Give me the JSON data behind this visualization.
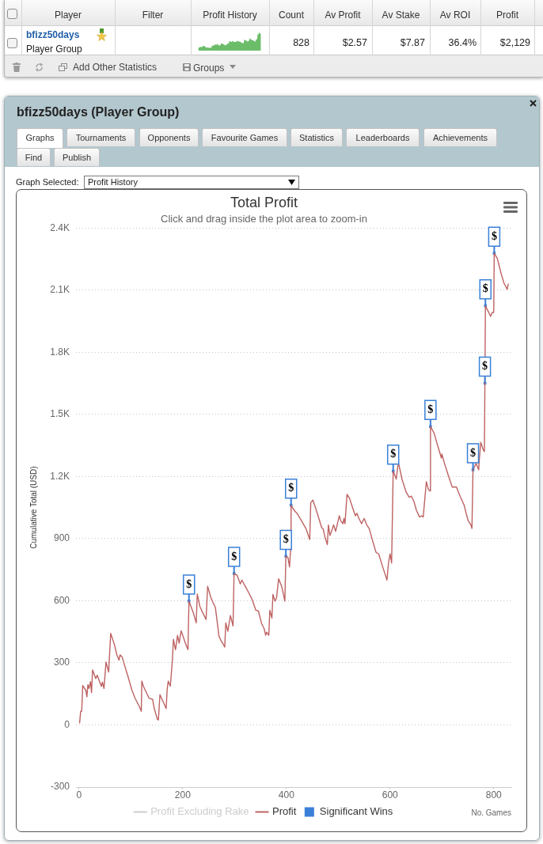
{
  "chart_data": {
    "type": "line",
    "title": "Total Profit",
    "subtitle": "Click and drag inside the plot area to zoom-in",
    "xlabel": "No. Games",
    "ylabel": "Cumulative Total (USD)",
    "xlim": [
      -6,
      834
    ],
    "xticks": [
      0,
      200,
      400,
      600,
      800
    ],
    "ylim": [
      -300,
      2400
    ],
    "yticks": [
      -300,
      0,
      300,
      600,
      900,
      {
        "value": 1200,
        "label": "1.2K"
      },
      {
        "value": 1500,
        "label": "1.5K"
      },
      {
        "value": 1800,
        "label": "1.8K"
      },
      {
        "value": 2100,
        "label": "2.1K"
      },
      {
        "value": 2400,
        "label": "2.4K"
      }
    ],
    "grid": "y",
    "legend": "bottom",
    "series": [
      {
        "name": "Profit Excluding Rake",
        "color": "#cccccc"
      },
      {
        "name": "Profit",
        "color": "#be6262",
        "marker": "none",
        "x": [
          1,
          3,
          5,
          7,
          13,
          15,
          17,
          19,
          22,
          24,
          26,
          32,
          35,
          43,
          45,
          48,
          52,
          57,
          61,
          68,
          73,
          77,
          79,
          83,
          94,
          102,
          108,
          117,
          120,
          121,
          124,
          135,
          142,
          145,
          151,
          153,
          156,
          161,
          168,
          170,
          172,
          176,
          180,
          182,
          186,
          190,
          193,
          197,
          205,
          210,
          212,
          220,
          226,
          228,
          233,
          239,
          245,
          248,
          254,
          258,
          263,
          270,
          275,
          278,
          281,
          283,
          287,
          292,
          297,
          299,
          305,
          311,
          314,
          321,
          329,
          334,
          341,
          346,
          352,
          357,
          360,
          362,
          366,
          368,
          372,
          374,
          378,
          381,
          385,
          391,
          397,
          399,
          403,
          406,
          408,
          409,
          415,
          421,
          428,
          438,
          445,
          447,
          451,
          456,
          461,
          468,
          471,
          475,
          479,
          481,
          484,
          488,
          491,
          495,
          502,
          505,
          509,
          511,
          513,
          517,
          522,
          527,
          533,
          536,
          540,
          545,
          550,
          555,
          560,
          567,
          573,
          578,
          585,
          590,
          594,
          597,
          600,
          603,
          606,
          612,
          615,
          617,
          623,
          631,
          637,
          641,
          646,
          651,
          657,
          661,
          664,
          670,
          674,
          677,
          678,
          685,
          690,
          696,
          699,
          700,
          705,
          713,
          720,
          728,
          735,
          743,
          748,
          751,
          756,
          758,
          760,
          766,
          771,
          772,
          775,
          780,
          782,
          783,
          784,
          789,
          794,
          797,
          800,
          801,
          807,
          814,
          820,
          823,
          826,
          828
        ],
        "values": [
          10,
          66,
          66,
          190,
          167,
          136,
          194,
          176,
          209,
          156,
          266,
          224,
          240,
          186,
          206,
          176,
          304,
          256,
          442,
          389,
          338,
          313,
          338,
          328,
          237,
          167,
          129,
          85,
          66,
          212,
          187,
          129,
          123,
          79,
          28,
          24,
          146,
          118,
          79,
          174,
          212,
          187,
          313,
          414,
          363,
          433,
          395,
          455,
          395,
          364,
          598,
          544,
          493,
          632,
          572,
          540,
          509,
          670,
          617,
          593,
          567,
          427,
          402,
          390,
          376,
          493,
          452,
          528,
          478,
          731,
          722,
          681,
          700,
          668,
          630,
          605,
          554,
          550,
          490,
          465,
          433,
          448,
          433,
          554,
          516,
          630,
          598,
          614,
          706,
          668,
          598,
          814,
          808,
          763,
          845,
          1061,
          1036,
          1020,
          991,
          947,
          896,
          1073,
          1086,
          1050,
          1010,
          953,
          946,
          902,
          871,
          966,
          915,
          942,
          966,
          935,
          1010,
          985,
          972,
          997,
          972,
          1114,
          1093,
          1054,
          1010,
          1022,
          997,
          972,
          997,
          966,
          947,
          883,
          833,
          826,
          769,
          731,
          700,
          782,
          826,
          782,
          1225,
          1187,
          1251,
          1257,
          1187,
          1124,
          1099,
          1105,
          1080,
          1035,
          1004,
          1010,
          1004,
          1175,
          1137,
          1130,
          1441,
          1409,
          1365,
          1315,
          1289,
          1308,
          1263,
          1200,
          1149,
          1149,
          1105,
          1061,
          1010,
          985,
          966,
          949,
          1232,
          1263,
          1232,
          1276,
          1365,
          1327,
          1320,
          1650,
          2024,
          1999,
          1973,
          1992,
          1992,
          2278,
          2252,
          2183,
          2132,
          2119,
          2103,
          2129
        ]
      },
      {
        "name": "Significant Wins",
        "type": "scatter",
        "color": "#3a80d8",
        "marker": "square",
        "x": [
          212,
          299,
          399,
          409,
          606,
          678,
          760,
          783,
          784,
          801
        ],
        "values": [
          598,
          731,
          814,
          1061,
          1225,
          1441,
          1232,
          1650,
          2024,
          2278
        ],
        "value_labels": [
          "$",
          "$",
          "$",
          "$",
          "$",
          "$",
          "$",
          "$",
          "$",
          "$"
        ]
      }
    ],
    "annotations": [
      "Player",
      "Filter",
      "Profit History",
      "Count",
      "Av Profit",
      "Av Stake",
      "Av ROI",
      "Profit",
      "bfizz50days",
      "Player Group",
      "828",
      "$2.57",
      "$7.87",
      "36.4%",
      "$2,129",
      "Add Other Statistics",
      "Groups",
      "bfizz50days (Player Group)",
      "Graphs",
      "Tournaments",
      "Opponents",
      "Favourite Games",
      "Statistics",
      "Leaderboards",
      "Achievements",
      "Find",
      "Publish",
      "Graph Selected:",
      "Profit History"
    ]
  }
}
